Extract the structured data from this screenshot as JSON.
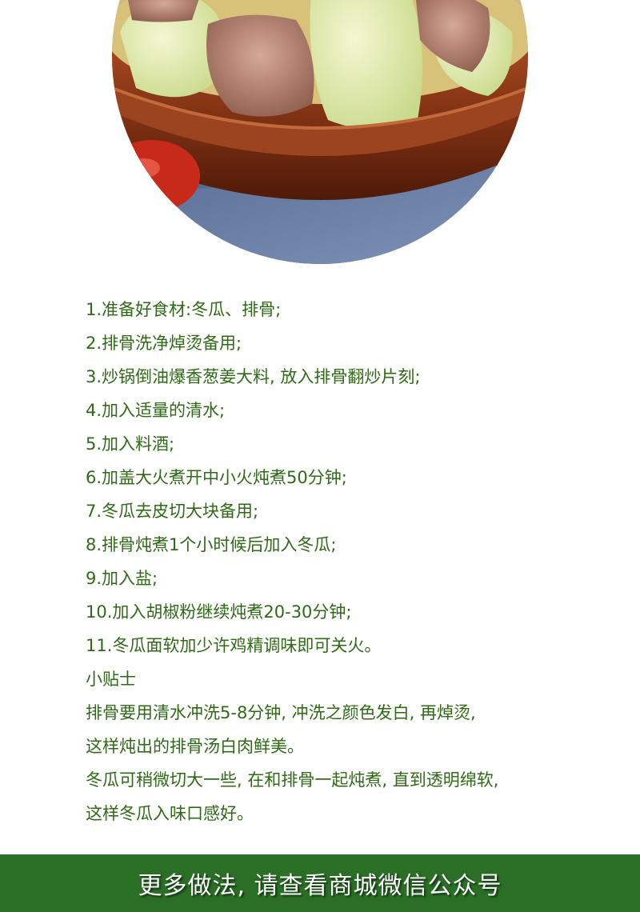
{
  "photo": {
    "subject": "winter melon and pork rib soup in a brown clay bowl"
  },
  "steps": [
    "1.准备好食材:冬瓜、排骨;",
    "2.排骨洗净焯烫备用;",
    "3.炒锅倒油爆香葱姜大料, 放入排骨翻炒片刻;",
    "4.加入适量的清水;",
    "5.加入料酒;",
    "6.加盖大火煮开中小火炖煮50分钟;",
    "7.冬瓜去皮切大块备用;",
    "8.排骨炖煮1个小时候后加入冬瓜;",
    "9.加入盐;",
    "10.加入胡椒粉继续炖煮20-30分钟;",
    "11.冬瓜面软加少许鸡精调味即可关火。"
  ],
  "tips": {
    "title": "小贴士",
    "lines": [
      "排骨要用清水冲洗5-8分钟, 冲洗之颜色发白, 再焯烫,",
      "这样炖出的排骨汤白肉鲜美。",
      "冬瓜可稍微切大一些, 在和排骨一起炖煮, 直到透明绵软,",
      "这样冬瓜入味口感好。"
    ]
  },
  "footer": {
    "text": "更多做法, 请查看商城微信公众号"
  },
  "colors": {
    "text_green": "#2f6a17",
    "banner_green": "#2a6f25",
    "bowl_brown": "#8a3a1a"
  }
}
